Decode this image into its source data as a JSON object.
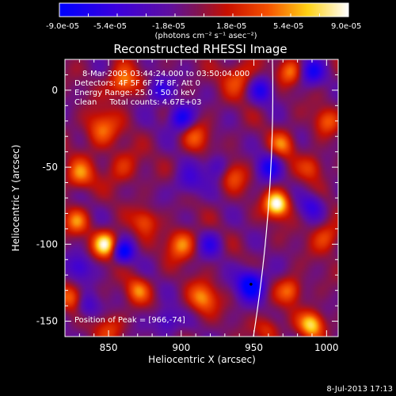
{
  "colorbar": {
    "min": -9e-05,
    "max": 9e-05,
    "tick_labels": [
      "-9.0e-05",
      "-5.4e-05",
      "-1.8e-05",
      "1.8e-05",
      "5.4e-05",
      "9.0e-05"
    ],
    "units_label": "(photons cm⁻² s⁻¹ asec⁻²)",
    "colormap": "red-temperature (blue-purple-red-yellow-white)"
  },
  "footer": {
    "date_stamp": "8-Jul-2013 17:13"
  },
  "chart_data": {
    "type": "heatmap",
    "title": "Reconstructed RHESSI Image",
    "xlabel": "Heliocentric X (arcsec)",
    "ylabel": "Heliocentric Y (arcsec)",
    "xlim": [
      820,
      1008
    ],
    "ylim": [
      -160,
      20
    ],
    "x_ticks": [
      850,
      900,
      950,
      1000
    ],
    "y_ticks": [
      -150,
      -100,
      -50,
      0
    ],
    "info_lines": [
      "8-Mar-2005 03:44:24.000 to 03:50:04.000",
      "Detectors: 4F 5F 6F 7F 8F, Att 0",
      "Energy Range: 25.0 - 50.0 keV",
      "Clean     Total counts: 4.67E+03"
    ],
    "peak_label": "Position of Peak = [966,-74]",
    "peak": [
      966,
      -74
    ],
    "sources": [
      {
        "x": 860,
        "y": 5,
        "v": 0.65,
        "s": 7
      },
      {
        "x": 940,
        "y": 8,
        "v": 0.45,
        "s": 8
      },
      {
        "x": 975,
        "y": 12,
        "v": 0.5,
        "s": 6
      },
      {
        "x": 845,
        "y": -25,
        "v": 0.55,
        "s": 8
      },
      {
        "x": 910,
        "y": -30,
        "v": 0.4,
        "s": 7
      },
      {
        "x": 970,
        "y": -35,
        "v": 0.5,
        "s": 6
      },
      {
        "x": 1000,
        "y": -20,
        "v": 0.45,
        "s": 6
      },
      {
        "x": 830,
        "y": -55,
        "v": 0.55,
        "s": 7
      },
      {
        "x": 860,
        "y": -50,
        "v": 0.35,
        "s": 8
      },
      {
        "x": 935,
        "y": -55,
        "v": 0.45,
        "s": 7
      },
      {
        "x": 990,
        "y": -50,
        "v": 0.4,
        "s": 6
      },
      {
        "x": 966,
        "y": -74,
        "v": 1.0,
        "s": 6
      },
      {
        "x": 875,
        "y": -85,
        "v": 0.45,
        "s": 6
      },
      {
        "x": 828,
        "y": -85,
        "v": 0.5,
        "s": 6
      },
      {
        "x": 848,
        "y": -100,
        "v": 0.9,
        "s": 6
      },
      {
        "x": 900,
        "y": -100,
        "v": 0.6,
        "s": 7
      },
      {
        "x": 1000,
        "y": -95,
        "v": 0.45,
        "s": 7
      },
      {
        "x": 825,
        "y": -135,
        "v": 0.5,
        "s": 6
      },
      {
        "x": 870,
        "y": -130,
        "v": 0.5,
        "s": 6
      },
      {
        "x": 915,
        "y": -135,
        "v": 0.6,
        "s": 7
      },
      {
        "x": 975,
        "y": -130,
        "v": 0.55,
        "s": 6
      },
      {
        "x": 990,
        "y": -152,
        "v": 0.8,
        "s": 6
      },
      {
        "x": 850,
        "y": -155,
        "v": 0.35,
        "s": 7
      },
      {
        "x": 960,
        "y": -155,
        "v": 0.4,
        "s": 6
      },
      {
        "x": 885,
        "y": 0,
        "v": -0.55,
        "s": 6
      },
      {
        "x": 900,
        "y": -18,
        "v": -0.75,
        "s": 6
      },
      {
        "x": 955,
        "y": 0,
        "v": -0.55,
        "s": 6
      },
      {
        "x": 990,
        "y": 12,
        "v": -0.6,
        "s": 6
      },
      {
        "x": 925,
        "y": -50,
        "v": -0.5,
        "s": 6
      },
      {
        "x": 960,
        "y": -50,
        "v": -0.6,
        "s": 6
      },
      {
        "x": 860,
        "y": -105,
        "v": -0.8,
        "s": 5
      },
      {
        "x": 920,
        "y": -100,
        "v": -0.45,
        "s": 6
      },
      {
        "x": 830,
        "y": -115,
        "v": -0.45,
        "s": 6
      },
      {
        "x": 948,
        "y": -126,
        "v": -0.9,
        "s": 7
      },
      {
        "x": 835,
        "y": -140,
        "v": -0.45,
        "s": 6
      },
      {
        "x": 990,
        "y": -75,
        "v": -0.45,
        "s": 6
      },
      {
        "x": 890,
        "y": -150,
        "v": -0.5,
        "s": 6
      },
      {
        "x": 905,
        "y": -60,
        "v": -0.4,
        "s": 7
      }
    ]
  }
}
